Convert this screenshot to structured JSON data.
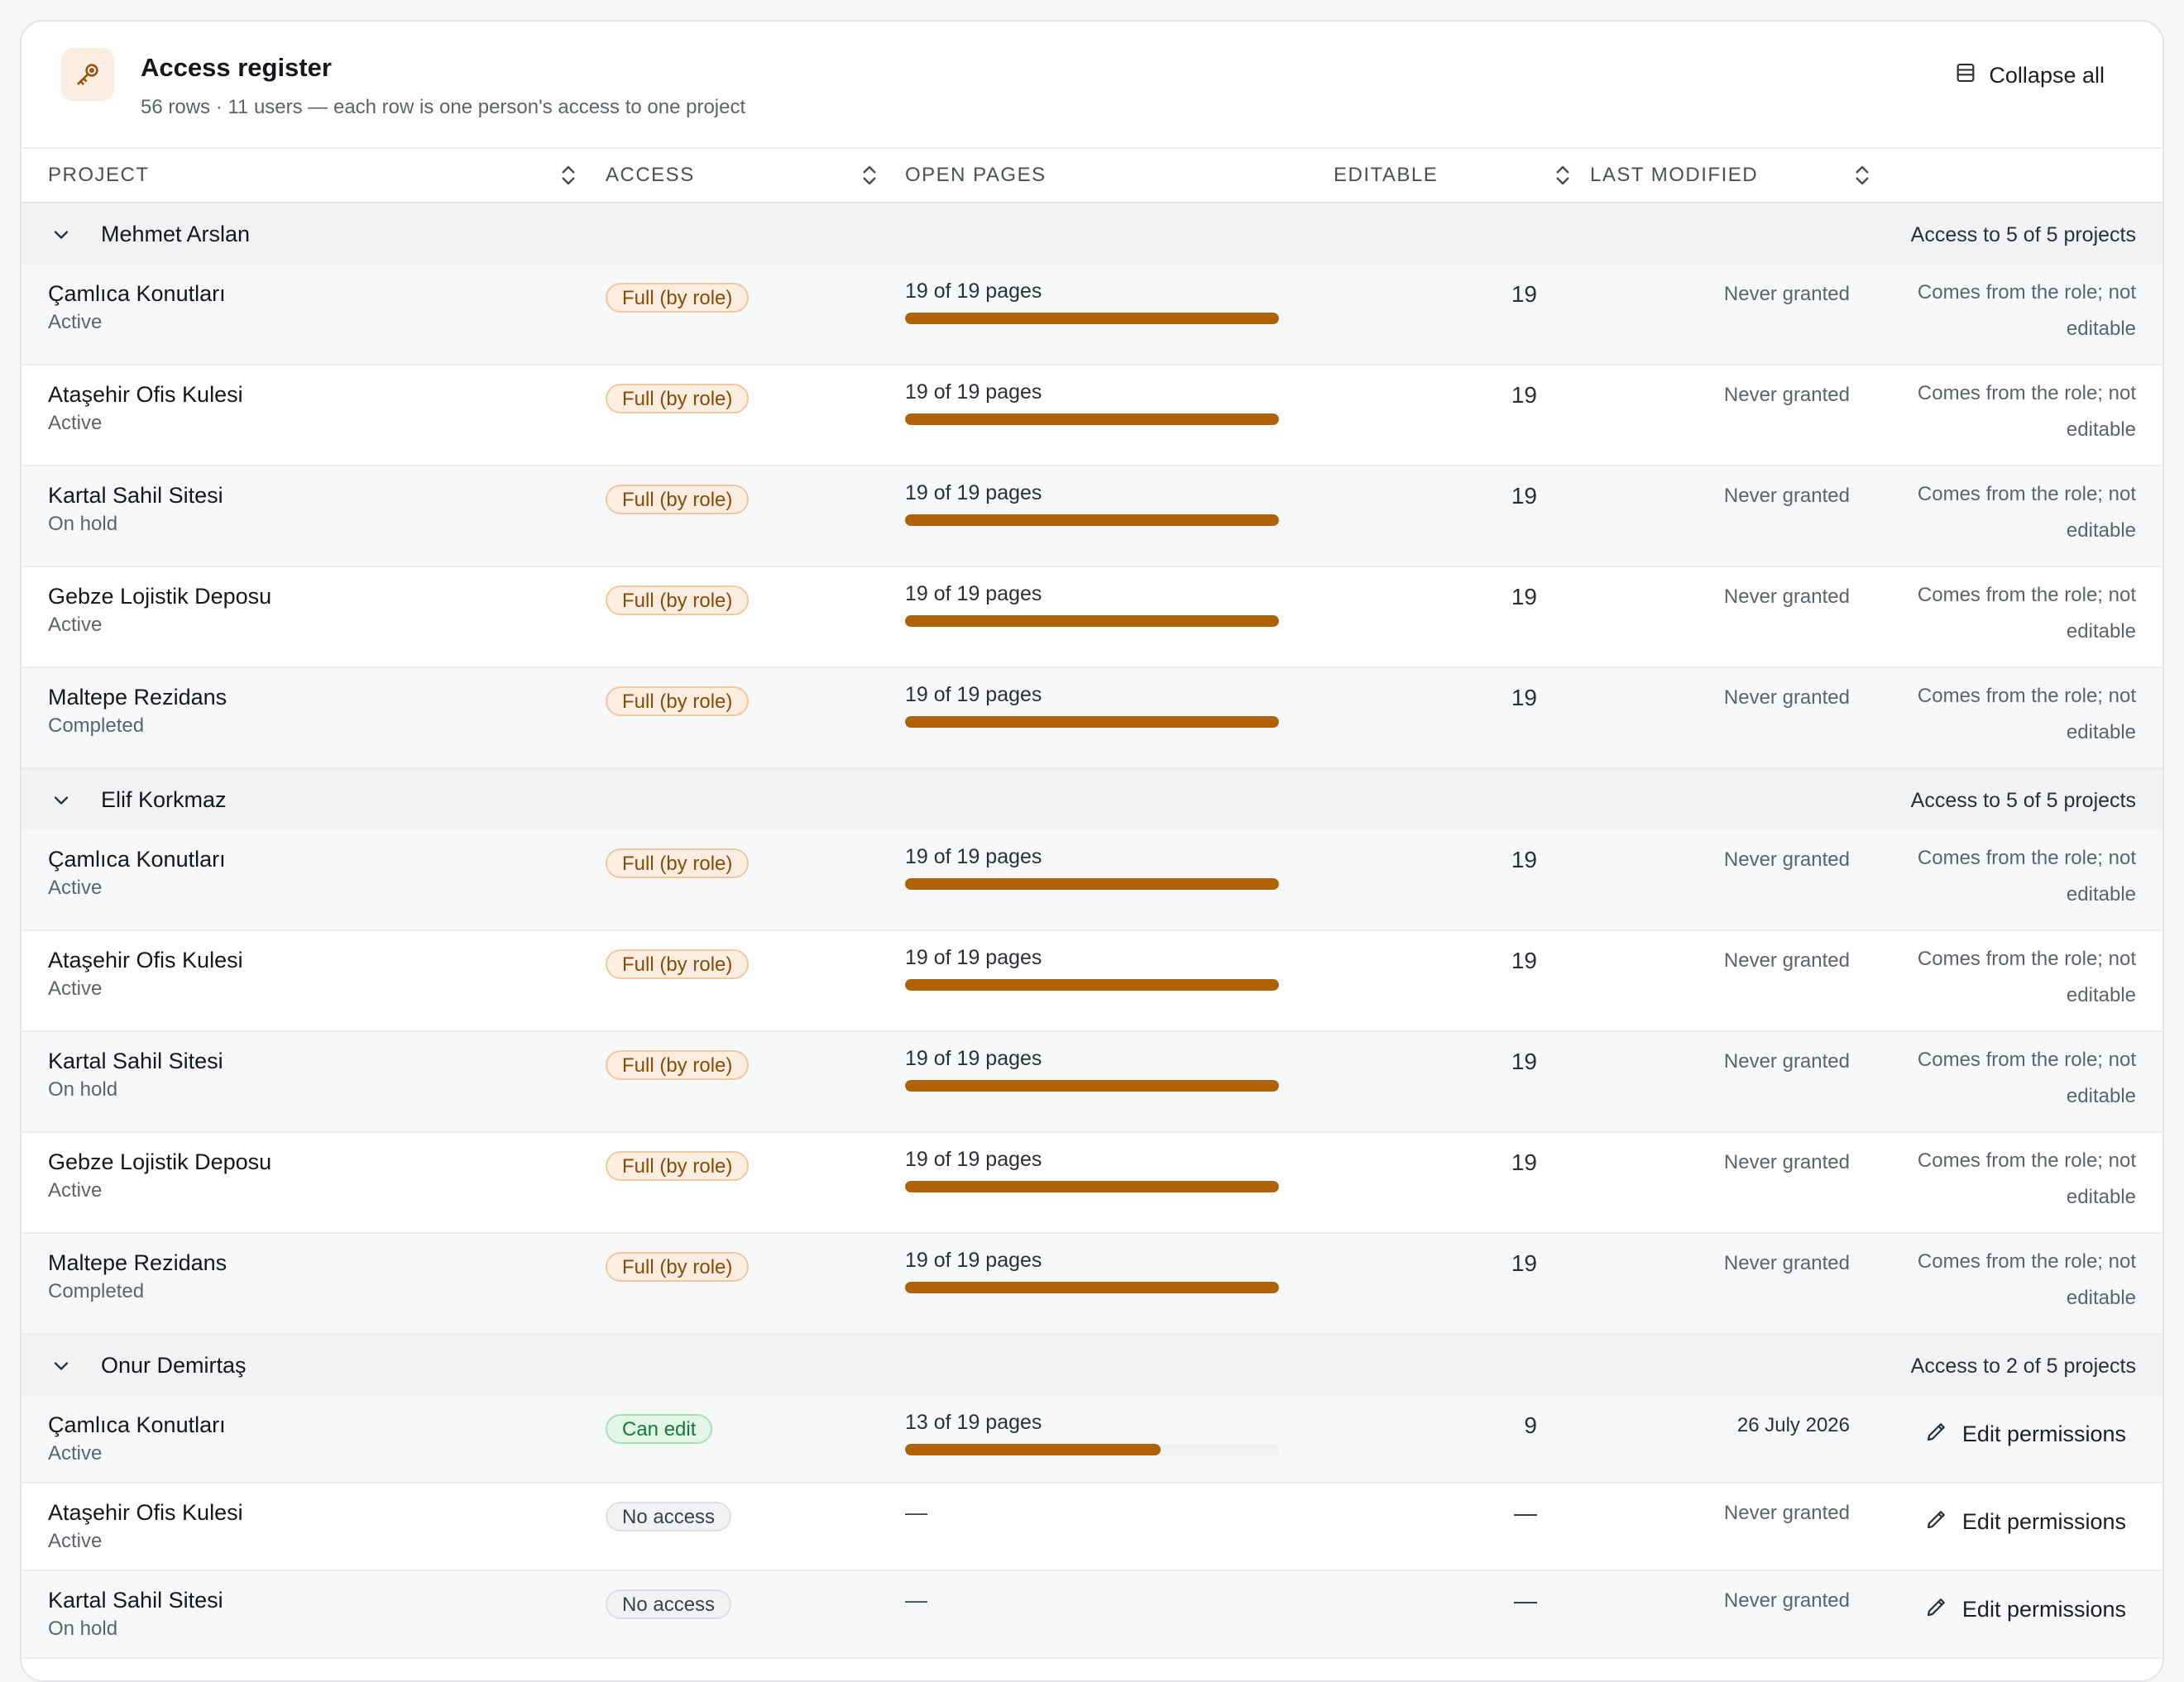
{
  "header": {
    "icon": "key-icon",
    "title": "Access register",
    "subtitle": "56 rows · 11 users — each row is one person's access to one project",
    "collapse_label": "Collapse all",
    "collapse_icon": "table-icon"
  },
  "columns": {
    "project": "PROJECT",
    "access": "ACCESS",
    "open_pages": "OPEN PAGES",
    "editable": "EDITABLE",
    "last_modified": "LAST MODIFIED"
  },
  "colors": {
    "accent": "#b06209",
    "full_badge_bg": "#fbeee0",
    "edit_badge_bg": "#e2f6e7",
    "none_badge_bg": "#f1f2f4"
  },
  "groups": [
    {
      "name": "Mehmet Arslan",
      "count": "Access to 5 of 5 projects",
      "rows": [
        {
          "project": "Çamlıca Konutları",
          "status": "Active",
          "access": "Full (by role)",
          "access_type": "full",
          "pages": "19 of 19 pages",
          "pages_fraction": 1.0,
          "editable": "19",
          "last_modified": "Never granted",
          "note": "Comes from the role; not editable"
        },
        {
          "project": "Ataşehir Ofis Kulesi",
          "status": "Active",
          "access": "Full (by role)",
          "access_type": "full",
          "pages": "19 of 19 pages",
          "pages_fraction": 1.0,
          "editable": "19",
          "last_modified": "Never granted",
          "note": "Comes from the role; not editable"
        },
        {
          "project": "Kartal Sahil Sitesi",
          "status": "On hold",
          "access": "Full (by role)",
          "access_type": "full",
          "pages": "19 of 19 pages",
          "pages_fraction": 1.0,
          "editable": "19",
          "last_modified": "Never granted",
          "note": "Comes from the role; not editable"
        },
        {
          "project": "Gebze Lojistik Deposu",
          "status": "Active",
          "access": "Full (by role)",
          "access_type": "full",
          "pages": "19 of 19 pages",
          "pages_fraction": 1.0,
          "editable": "19",
          "last_modified": "Never granted",
          "note": "Comes from the role; not editable"
        },
        {
          "project": "Maltepe Rezidans",
          "status": "Completed",
          "access": "Full (by role)",
          "access_type": "full",
          "pages": "19 of 19 pages",
          "pages_fraction": 1.0,
          "editable": "19",
          "last_modified": "Never granted",
          "note": "Comes from the role; not editable"
        }
      ]
    },
    {
      "name": "Elif Korkmaz",
      "count": "Access to 5 of 5 projects",
      "rows": [
        {
          "project": "Çamlıca Konutları",
          "status": "Active",
          "access": "Full (by role)",
          "access_type": "full",
          "pages": "19 of 19 pages",
          "pages_fraction": 1.0,
          "editable": "19",
          "last_modified": "Never granted",
          "note": "Comes from the role; not editable"
        },
        {
          "project": "Ataşehir Ofis Kulesi",
          "status": "Active",
          "access": "Full (by role)",
          "access_type": "full",
          "pages": "19 of 19 pages",
          "pages_fraction": 1.0,
          "editable": "19",
          "last_modified": "Never granted",
          "note": "Comes from the role; not editable"
        },
        {
          "project": "Kartal Sahil Sitesi",
          "status": "On hold",
          "access": "Full (by role)",
          "access_type": "full",
          "pages": "19 of 19 pages",
          "pages_fraction": 1.0,
          "editable": "19",
          "last_modified": "Never granted",
          "note": "Comes from the role; not editable"
        },
        {
          "project": "Gebze Lojistik Deposu",
          "status": "Active",
          "access": "Full (by role)",
          "access_type": "full",
          "pages": "19 of 19 pages",
          "pages_fraction": 1.0,
          "editable": "19",
          "last_modified": "Never granted",
          "note": "Comes from the role; not editable"
        },
        {
          "project": "Maltepe Rezidans",
          "status": "Completed",
          "access": "Full (by role)",
          "access_type": "full",
          "pages": "19 of 19 pages",
          "pages_fraction": 1.0,
          "editable": "19",
          "last_modified": "Never granted",
          "note": "Comes from the role; not editable"
        }
      ]
    },
    {
      "name": "Onur Demirtaş",
      "count": "Access to 2 of 5 projects",
      "rows": [
        {
          "project": "Çamlıca Konutları",
          "status": "Active",
          "access": "Can edit",
          "access_type": "edit",
          "pages": "13 of 19 pages",
          "pages_fraction": 0.684,
          "editable": "9",
          "last_modified": "26 July 2026",
          "action": "Edit permissions"
        },
        {
          "project": "Ataşehir Ofis Kulesi",
          "status": "Active",
          "access": "No access",
          "access_type": "none",
          "pages": "—",
          "editable": "—",
          "last_modified": "Never granted",
          "action": "Edit permissions"
        },
        {
          "project": "Kartal Sahil Sitesi",
          "status": "On hold",
          "access": "No access",
          "access_type": "none",
          "pages": "—",
          "editable": "—",
          "last_modified": "Never granted",
          "action": "Edit permissions"
        }
      ]
    }
  ]
}
